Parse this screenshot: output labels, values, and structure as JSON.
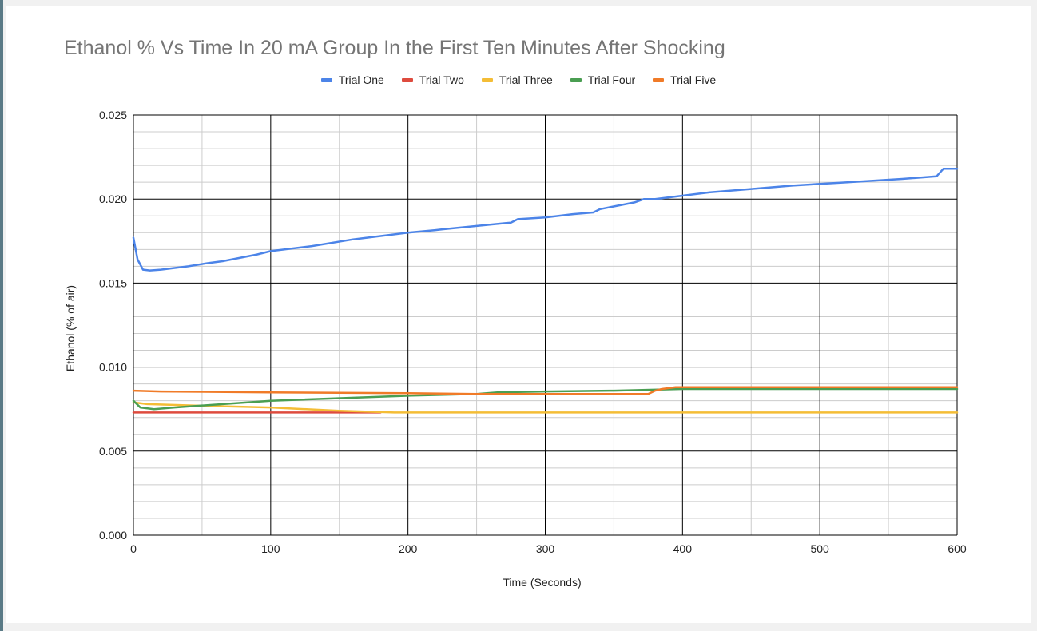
{
  "colors": {
    "trial_one": "#4c84e8",
    "trial_two": "#de4b3e",
    "trial_three": "#f4bd36",
    "trial_four": "#4a9e52",
    "trial_five": "#f07b28",
    "major_grid": "#000000",
    "minor_grid": "#cccccc"
  },
  "chart_data": {
    "type": "line",
    "title": "Ethanol % Vs Time In 20 mA Group In the First Ten Minutes After Shocking",
    "xlabel": "Time (Seconds)",
    "ylabel": "Ethanol (% of air)",
    "xlim": [
      0,
      600
    ],
    "ylim": [
      0,
      0.025
    ],
    "x_ticks": [
      "0",
      "100",
      "200",
      "300",
      "400",
      "500",
      "600"
    ],
    "y_ticks": [
      "0.000",
      "0.005",
      "0.010",
      "0.015",
      "0.020",
      "0.025"
    ],
    "grid": true,
    "legend_position": "top",
    "series": [
      {
        "name": "Trial One",
        "color_key": "trial_one",
        "points": [
          [
            0,
            0.0177
          ],
          [
            3,
            0.0164
          ],
          [
            7,
            0.0158
          ],
          [
            12,
            0.01575
          ],
          [
            20,
            0.0158
          ],
          [
            40,
            0.016
          ],
          [
            55,
            0.0162
          ],
          [
            65,
            0.0163
          ],
          [
            90,
            0.0167
          ],
          [
            100,
            0.0169
          ],
          [
            130,
            0.0172
          ],
          [
            160,
            0.0176
          ],
          [
            200,
            0.018
          ],
          [
            220,
            0.01815
          ],
          [
            225,
            0.0182
          ],
          [
            250,
            0.0184
          ],
          [
            275,
            0.0186
          ],
          [
            280,
            0.0188
          ],
          [
            300,
            0.0189
          ],
          [
            320,
            0.0191
          ],
          [
            335,
            0.0192
          ],
          [
            340,
            0.0194
          ],
          [
            365,
            0.0198
          ],
          [
            372,
            0.02
          ],
          [
            380,
            0.02
          ],
          [
            400,
            0.0202
          ],
          [
            420,
            0.0204
          ],
          [
            450,
            0.0206
          ],
          [
            480,
            0.0208
          ],
          [
            500,
            0.0209
          ],
          [
            520,
            0.021
          ],
          [
            540,
            0.0211
          ],
          [
            560,
            0.0212
          ],
          [
            585,
            0.02135
          ],
          [
            590,
            0.0218
          ],
          [
            600,
            0.0218
          ]
        ]
      },
      {
        "name": "Trial Two",
        "color_key": "trial_two",
        "points": [
          [
            0,
            0.0073
          ],
          [
            180,
            0.0073
          ]
        ]
      },
      {
        "name": "Trial Three",
        "color_key": "trial_three",
        "points": [
          [
            0,
            0.0079
          ],
          [
            10,
            0.0078
          ],
          [
            50,
            0.0077
          ],
          [
            100,
            0.0076
          ],
          [
            150,
            0.0074
          ],
          [
            190,
            0.0073
          ],
          [
            200,
            0.0073
          ],
          [
            600,
            0.0073
          ]
        ]
      },
      {
        "name": "Trial Four",
        "color_key": "trial_four",
        "points": [
          [
            0,
            0.008
          ],
          [
            5,
            0.0076
          ],
          [
            15,
            0.0075
          ],
          [
            30,
            0.0076
          ],
          [
            100,
            0.008
          ],
          [
            200,
            0.0083
          ],
          [
            250,
            0.0084
          ],
          [
            265,
            0.0085
          ],
          [
            300,
            0.00855
          ],
          [
            350,
            0.0086
          ],
          [
            400,
            0.0087
          ],
          [
            450,
            0.0087
          ],
          [
            500,
            0.0087
          ],
          [
            600,
            0.0087
          ]
        ]
      },
      {
        "name": "Trial Five",
        "color_key": "trial_five",
        "points": [
          [
            0,
            0.0086
          ],
          [
            20,
            0.00855
          ],
          [
            100,
            0.0085
          ],
          [
            200,
            0.00845
          ],
          [
            250,
            0.0084
          ],
          [
            300,
            0.0084
          ],
          [
            375,
            0.0084
          ],
          [
            380,
            0.0086
          ],
          [
            385,
            0.0087
          ],
          [
            395,
            0.0088
          ],
          [
            420,
            0.0088
          ],
          [
            500,
            0.0088
          ],
          [
            560,
            0.0088
          ],
          [
            600,
            0.0088
          ]
        ]
      }
    ]
  }
}
